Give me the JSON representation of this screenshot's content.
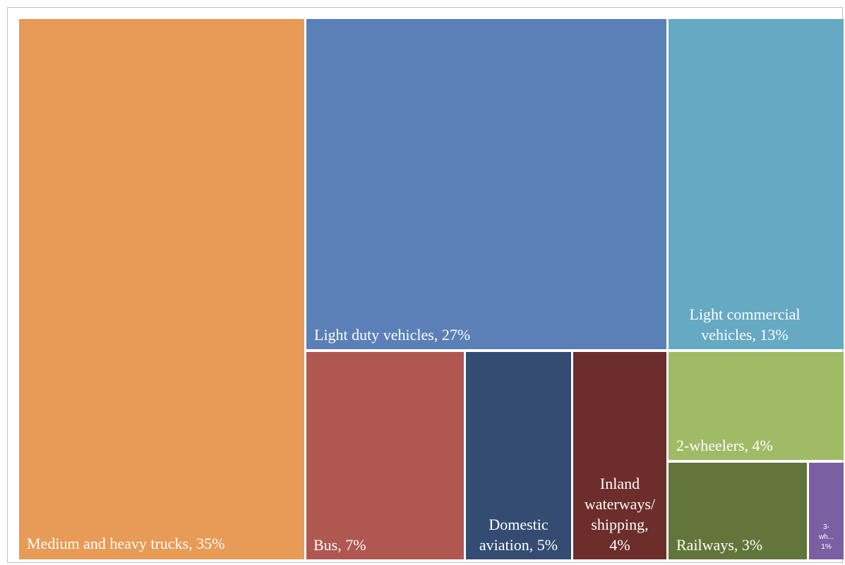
{
  "chart_data": {
    "type": "treemap",
    "items": [
      {
        "key": "trucks",
        "name": "Medium and heavy trucks",
        "value": 35,
        "label": "Medium and heavy trucks, 35%",
        "color": "#E89A57"
      },
      {
        "key": "ldv",
        "name": "Light duty vehicles",
        "value": 27,
        "label": "Light duty vehicles, 27%",
        "color": "#5B7FB7"
      },
      {
        "key": "lcv",
        "name": "Light commercial vehicles",
        "value": 13,
        "label": "Light commercial\nvehicles, 13%",
        "color": "#66A9C3"
      },
      {
        "key": "bus",
        "name": "Bus",
        "value": 7,
        "label": "Bus, 7%",
        "color": "#B05752"
      },
      {
        "key": "aviation",
        "name": "Domestic aviation",
        "value": 5,
        "label": "Domestic\naviation, 5%",
        "color": "#354C72"
      },
      {
        "key": "shipping",
        "name": "Inland waterways/ shipping",
        "value": 4,
        "label": "Inland\nwaterways/\nshipping,\n4%",
        "color": "#6C2D2B"
      },
      {
        "key": "twowheel",
        "name": "2-wheelers",
        "value": 4,
        "label": "2-wheelers, 4%",
        "color": "#A0BB66"
      },
      {
        "key": "rail",
        "name": "Railways",
        "value": 3,
        "label": "Railways, 3%",
        "color": "#62753A"
      },
      {
        "key": "threewheel",
        "name": "3-wheelers",
        "value": 1,
        "label": "3-\nwh...\n1%",
        "color": "#7B5FA3"
      }
    ]
  }
}
